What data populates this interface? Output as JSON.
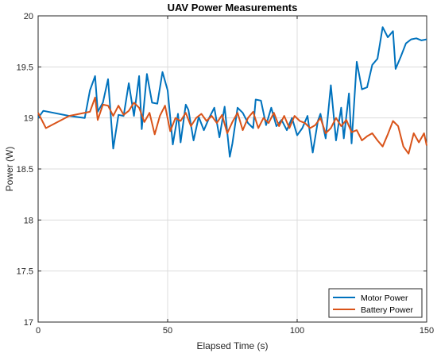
{
  "chart_data": {
    "type": "line",
    "title": "UAV Power Measurements",
    "xlabel": "Elapsed Time (s)",
    "ylabel": "Power (W)",
    "xlim": [
      0,
      150
    ],
    "ylim": [
      17,
      20
    ],
    "xticks": [
      0,
      50,
      100,
      150
    ],
    "yticks": [
      17,
      17.5,
      18,
      18.5,
      19,
      19.5,
      20
    ],
    "xtick_labels": [
      "0",
      "50",
      "100",
      "150"
    ],
    "ytick_labels": [
      "17",
      "17.5",
      "18",
      "18.5",
      "19",
      "19.5",
      "20"
    ],
    "grid": true,
    "legend_location": "bottom-right",
    "series": [
      {
        "name": "Motor Power",
        "color": "#0072BD",
        "x": [
          0,
          2,
          12,
          18,
          20,
          22,
          23,
          25,
          27,
          29,
          31,
          33,
          35,
          37,
          39,
          40,
          42,
          44,
          46,
          48,
          50,
          52,
          54,
          55,
          57,
          58,
          60,
          62,
          64,
          66,
          68,
          70,
          72,
          74,
          75,
          77,
          79,
          81,
          83,
          84,
          86,
          88,
          90,
          92,
          94,
          96,
          98,
          100,
          102,
          104,
          106,
          108,
          109,
          111,
          113,
          115,
          117,
          118,
          120,
          121,
          123,
          125,
          127,
          129,
          131,
          133,
          135,
          137,
          138,
          140,
          142,
          144,
          146,
          148,
          150
        ],
        "y": [
          19.0,
          19.07,
          19.02,
          19.0,
          19.27,
          19.41,
          19.06,
          19.15,
          19.38,
          18.7,
          19.03,
          19.02,
          19.34,
          19.02,
          19.41,
          18.89,
          19.43,
          19.15,
          19.14,
          19.45,
          19.27,
          18.74,
          19.04,
          18.76,
          19.13,
          19.08,
          18.78,
          19.01,
          18.88,
          19.0,
          19.1,
          18.81,
          19.11,
          18.62,
          18.75,
          19.1,
          19.05,
          18.95,
          18.9,
          19.18,
          19.17,
          18.93,
          19.1,
          18.92,
          18.98,
          18.88,
          19.0,
          18.83,
          18.9,
          19.02,
          18.66,
          18.97,
          19.04,
          18.8,
          19.32,
          18.78,
          19.1,
          18.8,
          19.24,
          18.75,
          19.55,
          19.28,
          19.3,
          19.52,
          19.58,
          19.89,
          19.79,
          19.85,
          19.48,
          19.6,
          19.73,
          19.77,
          19.78,
          19.76,
          19.77
        ]
      },
      {
        "name": "Battery Power",
        "color": "#D95319",
        "x": [
          0,
          3,
          12,
          20,
          22,
          23,
          25,
          27,
          29,
          31,
          33,
          35,
          37,
          39,
          41,
          43,
          45,
          47,
          49,
          51,
          53,
          55,
          57,
          59,
          61,
          63,
          65,
          67,
          69,
          71,
          73,
          75,
          77,
          79,
          81,
          83,
          85,
          87,
          89,
          91,
          93,
          95,
          97,
          99,
          101,
          103,
          105,
          107,
          109,
          111,
          113,
          115,
          117,
          119,
          121,
          123,
          125,
          127,
          129,
          131,
          133,
          135,
          137,
          139,
          141,
          143,
          145,
          147,
          149,
          150
        ],
        "y": [
          19.05,
          18.9,
          19.02,
          19.06,
          19.2,
          18.98,
          19.13,
          19.12,
          19.02,
          19.12,
          19.03,
          19.07,
          19.15,
          19.1,
          18.96,
          19.05,
          18.84,
          19.02,
          19.12,
          18.87,
          19.0,
          18.97,
          19.05,
          18.92,
          19.0,
          19.04,
          18.97,
          19.02,
          18.95,
          19.03,
          18.85,
          18.96,
          19.05,
          18.88,
          19.0,
          19.06,
          18.9,
          19.0,
          18.95,
          19.05,
          18.92,
          19.02,
          18.9,
          19.02,
          18.97,
          18.95,
          18.9,
          18.93,
          19.0,
          18.85,
          18.9,
          19.0,
          18.92,
          18.98,
          18.86,
          18.88,
          18.78,
          18.82,
          18.85,
          18.78,
          18.72,
          18.84,
          18.97,
          18.92,
          18.72,
          18.65,
          18.85,
          18.76,
          18.85,
          18.73
        ]
      }
    ]
  }
}
